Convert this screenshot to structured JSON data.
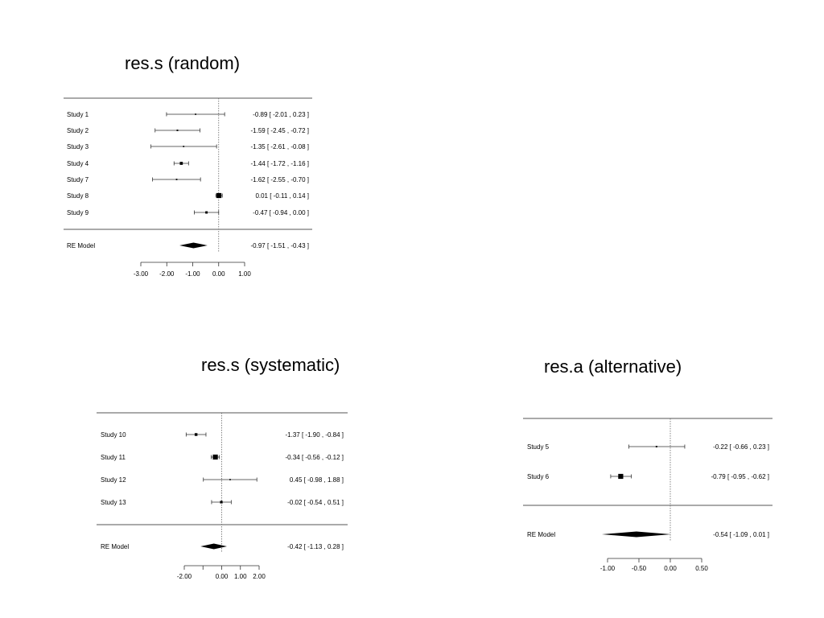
{
  "slide_titles": {
    "random": "res.s (random)",
    "systematic": "res.s (systematic)",
    "alternative": "res.a  (alternative)"
  },
  "chart_data": [
    {
      "type": "forest",
      "title": "res.s (random)",
      "xlim": [
        -3.0,
        1.0
      ],
      "xticks": [
        -3.0,
        -2.0,
        -1.0,
        0.0,
        1.0
      ],
      "xtick_labels": [
        "-3.00",
        "-2.00",
        "-1.00",
        "0.00",
        "1.00"
      ],
      "reference_line": 0,
      "studies": [
        {
          "label": "Study  1",
          "estimate": -0.89,
          "ci_low": -2.01,
          "ci_high": 0.23,
          "text": "-0.89 [ -2.01 ,  0.23 ]",
          "weight": 0.1
        },
        {
          "label": "Study  2",
          "estimate": -1.59,
          "ci_low": -2.45,
          "ci_high": -0.72,
          "text": "-1.59 [ -2.45 , -0.72 ]",
          "weight": 0.15
        },
        {
          "label": "Study  3",
          "estimate": -1.35,
          "ci_low": -2.61,
          "ci_high": -0.08,
          "text": "-1.35 [ -2.61 , -0.08 ]",
          "weight": 0.1
        },
        {
          "label": "Study  4",
          "estimate": -1.44,
          "ci_low": -1.72,
          "ci_high": -1.16,
          "text": "-1.44 [ -1.72 , -1.16 ]",
          "weight": 0.5
        },
        {
          "label": "Study  7",
          "estimate": -1.62,
          "ci_low": -2.55,
          "ci_high": -0.7,
          "text": "-1.62 [ -2.55 , -0.70 ]",
          "weight": 0.12
        },
        {
          "label": "Study  8",
          "estimate": 0.01,
          "ci_low": -0.11,
          "ci_high": 0.14,
          "text": "0.01 [ -0.11 ,  0.14 ]",
          "weight": 1.0
        },
        {
          "label": "Study  9",
          "estimate": -0.47,
          "ci_low": -0.94,
          "ci_high": 0.0,
          "text": "-0.47 [ -0.94 ,  0.00 ]",
          "weight": 0.35
        }
      ],
      "summary": {
        "label": "RE Model",
        "estimate": -0.97,
        "ci_low": -1.51,
        "ci_high": -0.43,
        "text": "-0.97 [ -1.51 , -0.43 ]"
      }
    },
    {
      "type": "forest",
      "title": "res.s (systematic)",
      "xlim": [
        -2.0,
        2.0
      ],
      "xticks": [
        -2.0,
        -1.0,
        0.0,
        1.0,
        2.0
      ],
      "xtick_labels": [
        "-2.00",
        "",
        "0.00",
        "1.00",
        "2.00"
      ],
      "reference_line": 0,
      "studies": [
        {
          "label": "Study  10",
          "estimate": -1.37,
          "ci_low": -1.9,
          "ci_high": -0.84,
          "text": "-1.37 [ -1.90 , -0.84 ]",
          "weight": 0.45
        },
        {
          "label": "Study  11",
          "estimate": -0.34,
          "ci_low": -0.56,
          "ci_high": -0.12,
          "text": "-0.34 [ -0.56 , -0.12 ]",
          "weight": 1.0
        },
        {
          "label": "Study  12",
          "estimate": 0.45,
          "ci_low": -0.98,
          "ci_high": 1.88,
          "text": "0.45 [ -0.98 ,  1.88 ]",
          "weight": 0.1
        },
        {
          "label": "Study  13",
          "estimate": -0.02,
          "ci_low": -0.54,
          "ci_high": 0.51,
          "text": "-0.02 [ -0.54 ,  0.51 ]",
          "weight": 0.4
        }
      ],
      "summary": {
        "label": "RE Model",
        "estimate": -0.42,
        "ci_low": -1.13,
        "ci_high": 0.28,
        "text": "-0.42 [ -1.13 ,  0.28 ]"
      }
    },
    {
      "type": "forest",
      "title": "res.a  (alternative)",
      "xlim": [
        -1.0,
        0.5
      ],
      "xticks": [
        -1.0,
        -0.5,
        0.0,
        0.5
      ],
      "xtick_labels": [
        "-1.00",
        "-0.50",
        "0.00",
        "0.50"
      ],
      "reference_line": 0,
      "studies": [
        {
          "label": "Study  5",
          "estimate": -0.22,
          "ci_low": -0.66,
          "ci_high": 0.23,
          "text": "-0.22 [ -0.66 ,  0.23 ]",
          "weight": 0.15
        },
        {
          "label": "Study  6",
          "estimate": -0.79,
          "ci_low": -0.95,
          "ci_high": -0.62,
          "text": "-0.79 [ -0.95 , -0.62 ]",
          "weight": 1.0
        }
      ],
      "summary": {
        "label": "RE Model",
        "estimate": -0.54,
        "ci_low": -1.09,
        "ci_high": 0.01,
        "text": "-0.54 [ -1.09 ,  0.01 ]"
      }
    }
  ]
}
